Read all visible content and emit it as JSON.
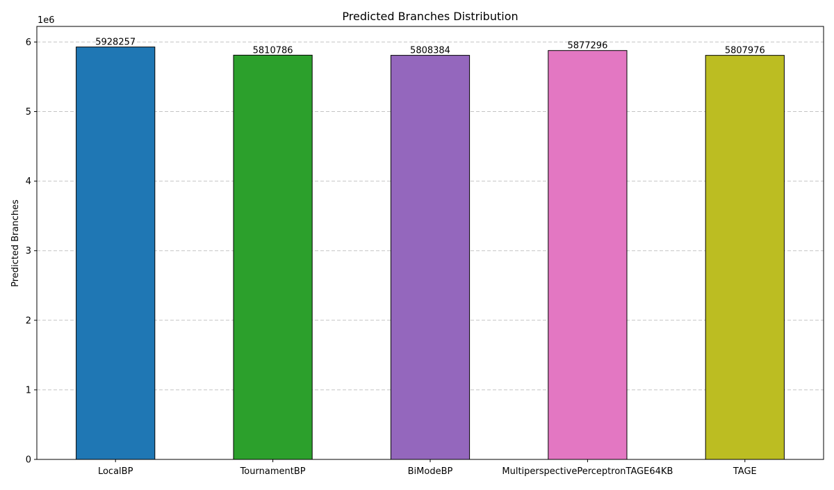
{
  "chart_data": {
    "type": "bar",
    "title": "Predicted Branches Distribution",
    "xlabel": "",
    "ylabel": "Predicted Branches",
    "scale_label": "1e6",
    "scale_factor": 1000000,
    "categories": [
      "LocalBP",
      "TournamentBP",
      "BiModeBP",
      "MultiperspectivePerceptronTAGE64KB",
      "TAGE"
    ],
    "values": [
      5928257,
      5810786,
      5808384,
      5877296,
      5807976
    ],
    "data_labels": [
      "5928257",
      "5810786",
      "5808384",
      "5877296",
      "5807976"
    ],
    "colors": [
      "#1f77b4",
      "#2ca02c",
      "#9467bd",
      "#e377c2",
      "#bcbd22"
    ],
    "yticks": [
      0,
      1,
      2,
      3,
      4,
      5,
      6
    ],
    "ylim": [
      0,
      6.224
    ],
    "grid": true,
    "grid_axis": "y",
    "legend": "none"
  }
}
